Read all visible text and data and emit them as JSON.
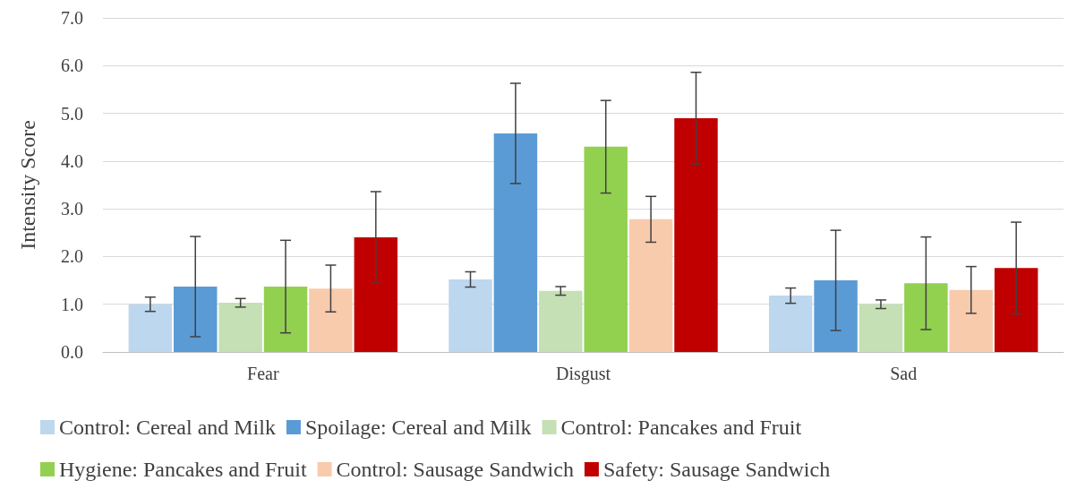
{
  "chart_data": {
    "type": "bar",
    "ylabel": "Intensity Score",
    "categories": [
      "Fear",
      "Disgust",
      "Sad"
    ],
    "ylim": [
      0,
      7
    ],
    "yticks": [
      {
        "value": 0,
        "label": "0.0"
      },
      {
        "value": 1,
        "label": "1.0"
      },
      {
        "value": 2,
        "label": "2.0"
      },
      {
        "value": 3,
        "label": "3.0"
      },
      {
        "value": 4,
        "label": "4.0"
      },
      {
        "value": 5,
        "label": "5.0"
      },
      {
        "value": 6,
        "label": "6.0"
      },
      {
        "value": 7,
        "label": "7.0"
      }
    ],
    "grid": "y",
    "legend": "bottom",
    "series": [
      {
        "name": "Control: Cereal and Milk",
        "color": "#bdd7ee",
        "values": [
          1.0,
          1.52,
          1.18
        ],
        "errors": [
          0.15,
          0.16,
          0.16
        ]
      },
      {
        "name": "Spoilage: Cereal and Milk",
        "color": "#5b9bd5",
        "values": [
          1.37,
          4.58,
          1.5
        ],
        "errors": [
          1.05,
          1.05,
          1.05
        ]
      },
      {
        "name": "Control: Pancakes and Fruit",
        "color": "#c5e0b4",
        "values": [
          1.03,
          1.28,
          1.0
        ],
        "errors": [
          0.09,
          0.09,
          0.09
        ]
      },
      {
        "name": "Hygiene: Pancakes and Fruit",
        "color": "#92d050",
        "values": [
          1.37,
          4.3,
          1.44
        ],
        "errors": [
          0.97,
          0.97,
          0.97
        ]
      },
      {
        "name": "Control: Sausage Sandwich",
        "color": "#f8cbad",
        "values": [
          1.33,
          2.78,
          1.3
        ],
        "errors": [
          0.49,
          0.48,
          0.49
        ]
      },
      {
        "name": "Safety: Sausage Sandwich",
        "color": "#c00000",
        "values": [
          2.4,
          4.9,
          1.76
        ],
        "errors": [
          0.96,
          0.96,
          0.96
        ]
      }
    ]
  }
}
